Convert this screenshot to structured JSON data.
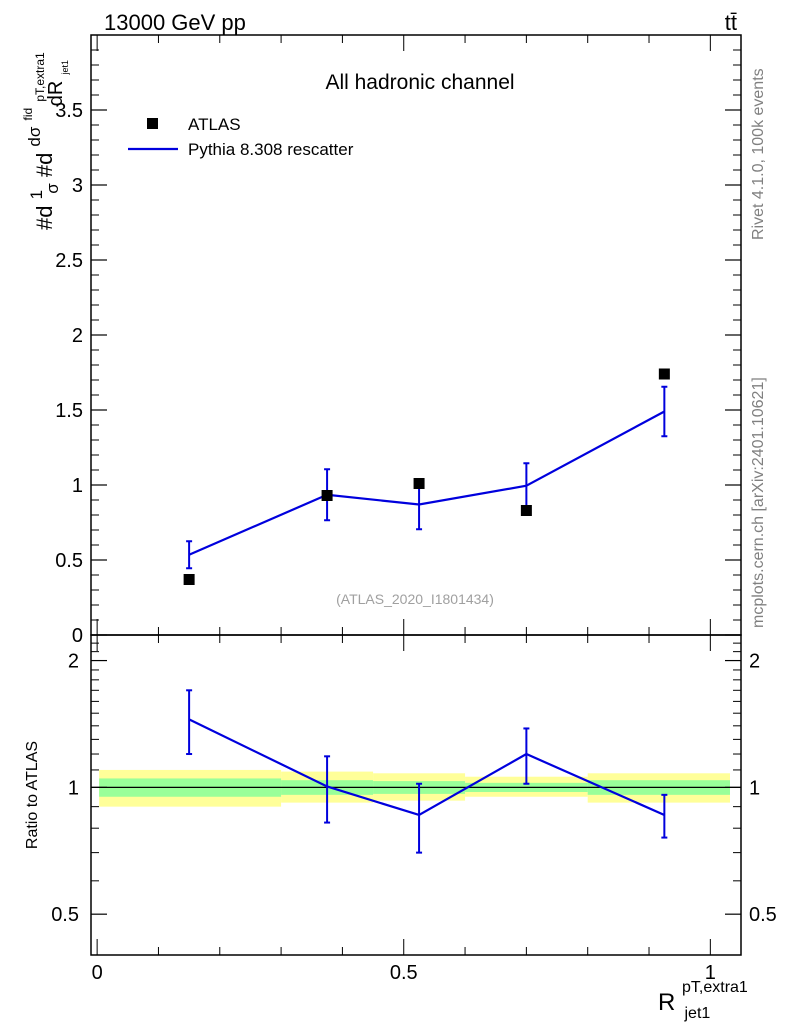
{
  "header": {
    "energy_label": "13000 GeV pp",
    "process_label": "tt̄",
    "side_rivet": "Rivet 4.1.0,  100k events",
    "side_site": "mcplots.cern.ch [arXiv:2401.10621]"
  },
  "chart_data": [
    {
      "type": "scatter",
      "panel": "main",
      "title": "All hadronic channel",
      "watermark": "(ATLAS_2020_I1801434)",
      "ylabel": "#d1/σ#dd σ^fid / dR^pT,extra1_jet1",
      "ylabel_parts": {
        "a": "#d",
        "b": "1",
        "c": "σ",
        "d": "#d",
        "e": "dσ",
        "f": "fid",
        "g": "pT,extra1",
        "h": "dR",
        "i": "jet1"
      },
      "xlim": [
        -0.01,
        1.05
      ],
      "ylim": [
        0,
        4
      ],
      "yticks": [
        0,
        0.5,
        1,
        1.5,
        2,
        2.5,
        3,
        3.5
      ],
      "ytick_labels": [
        "0",
        "0.5",
        "1",
        "1.5",
        "2",
        "2.5",
        "3",
        "3.5"
      ],
      "legend_position": "top-left",
      "series": [
        {
          "name": "ATLAS",
          "style": "markers",
          "color": "#000000",
          "x": [
            0.15,
            0.375,
            0.525,
            0.7,
            0.925
          ],
          "y": [
            0.37,
            0.93,
            1.01,
            0.83,
            1.74
          ]
        },
        {
          "name": "Pythia 8.308 rescatter",
          "style": "line",
          "color": "#0000dd",
          "x": [
            0.15,
            0.375,
            0.525,
            0.7,
            0.925
          ],
          "y": [
            0.535,
            0.935,
            0.87,
            0.995,
            1.49
          ],
          "yerr": [
            0.09,
            0.17,
            0.165,
            0.15,
            0.165
          ]
        }
      ]
    },
    {
      "type": "line",
      "panel": "ratio",
      "ylabel": "Ratio to ATLAS",
      "xlabel": "R^pT,extra1_jet1",
      "xlabel_parts": {
        "base": "R",
        "sup": "pT,extra1",
        "sub": "jet1"
      },
      "xlim": [
        -0.01,
        1.05
      ],
      "ylim": [
        0.4,
        2.3
      ],
      "xticks": [
        0,
        0.5,
        1
      ],
      "xtick_labels": [
        "0",
        "0.5",
        "1"
      ],
      "yticks": [
        0.5,
        1,
        2
      ],
      "ytick_labels": [
        "0.5",
        "1",
        "2"
      ],
      "reference": 1,
      "bands": [
        {
          "x0": 0.0,
          "x1": 0.3,
          "yellow": [
            0.9,
            1.1
          ],
          "green": [
            0.95,
            1.05
          ]
        },
        {
          "x0": 0.3,
          "x1": 0.45,
          "yellow": [
            0.92,
            1.09
          ],
          "green": [
            0.96,
            1.04
          ]
        },
        {
          "x0": 0.45,
          "x1": 0.6,
          "yellow": [
            0.93,
            1.08
          ],
          "green": [
            0.965,
            1.035
          ]
        },
        {
          "x0": 0.6,
          "x1": 0.8,
          "yellow": [
            0.95,
            1.06
          ],
          "green": [
            0.975,
            1.025
          ]
        },
        {
          "x0": 0.8,
          "x1": 1.05,
          "yellow": [
            0.92,
            1.08
          ],
          "green": [
            0.96,
            1.04
          ]
        }
      ],
      "series": [
        {
          "name": "Pythia 8.308 rescatter / ATLAS",
          "color": "#0000dd",
          "x": [
            0.15,
            0.375,
            0.525,
            0.7,
            0.925
          ],
          "y": [
            1.45,
            1.005,
            0.86,
            1.2,
            0.86
          ],
          "yerr": [
            0.25,
            0.18,
            0.16,
            0.18,
            0.1
          ]
        }
      ]
    }
  ]
}
